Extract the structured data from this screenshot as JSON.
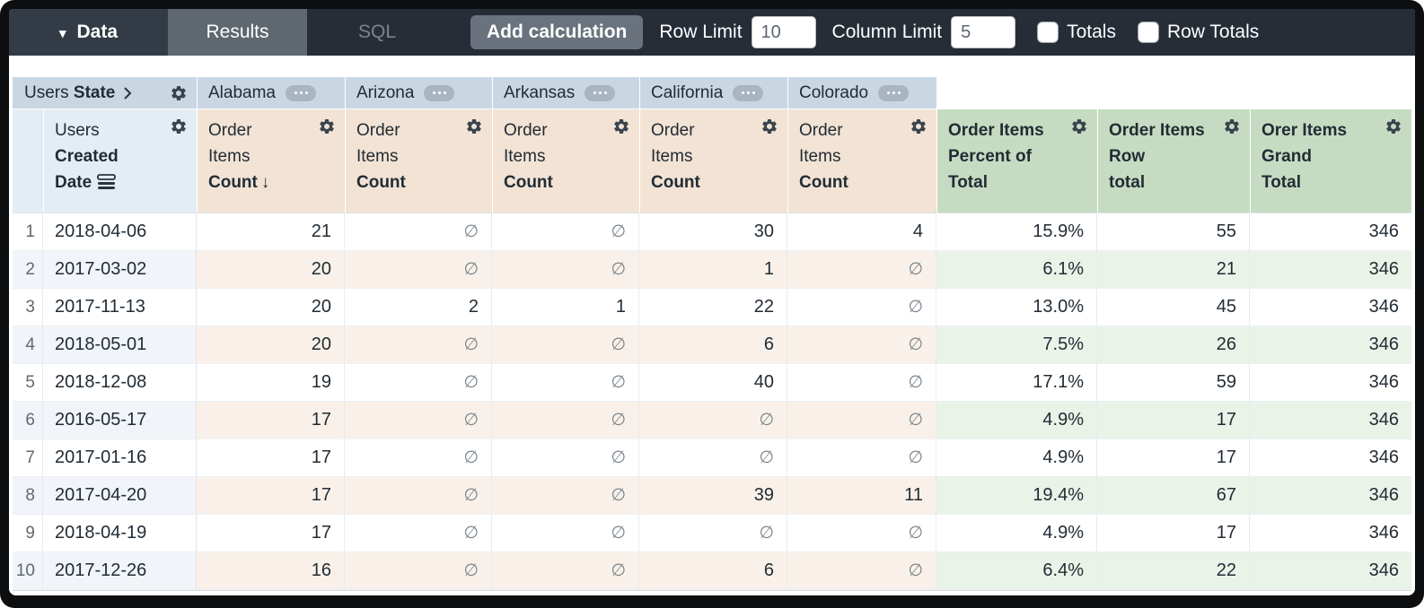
{
  "toolbar": {
    "data_tab": "Data",
    "results_tab": "Results",
    "sql_tab": "SQL",
    "add_calculation": "Add calculation",
    "row_limit_label": "Row Limit",
    "row_limit_value": "10",
    "column_limit_label": "Column Limit",
    "column_limit_value": "5",
    "totals_label": "Totals",
    "row_totals_label": "Row Totals",
    "totals_checked": false,
    "row_totals_checked": false
  },
  "icons": {
    "caret_down": "▾",
    "sort_descending": "↓",
    "null_value": "∅",
    "gear": "settings-gear",
    "ellipsis_pill": "three-dots-menu",
    "chevron_right": "expand-chevron",
    "date_hierarchy": "layered-bars"
  },
  "colors": {
    "pivot_header_bg": "#c9d7e3",
    "dim_header_bg": "#e4ecf4",
    "measure_header_bg": "#f2e3d5",
    "calc_header_bg": "#c6dcc2",
    "row_even_dim": "#f1f5f9",
    "row_even_measure": "#f9f1e9",
    "row_even_calc": "#eaf3e8",
    "topbar_bg": "#262d37"
  },
  "table": {
    "pivot_dim": {
      "regular": "Users",
      "bold": "State"
    },
    "pivot_values": [
      "Alabama",
      "Arizona",
      "Arkansas",
      "California",
      "Colorado"
    ],
    "row_field": {
      "line1": "Users",
      "line2": "Created",
      "line3": "Date"
    },
    "measure_field": {
      "line1": "Order",
      "line2": "Items",
      "line3": "Count"
    },
    "sorted_pivot_index": 0,
    "calc_fields": [
      [
        "Order Items",
        "Percent of",
        "Total"
      ],
      [
        "Order Items",
        "Row",
        "total"
      ],
      [
        "Orer Items",
        "Grand",
        "Total"
      ]
    ],
    "null_symbol": "∅",
    "rows": [
      {
        "n": "1",
        "date": "2018-04-06",
        "values": [
          "21",
          "∅",
          "∅",
          "30",
          "4"
        ],
        "pct": "15.9%",
        "row_total": "55",
        "grand_total": "346"
      },
      {
        "n": "2",
        "date": "2017-03-02",
        "values": [
          "20",
          "∅",
          "∅",
          "1",
          "∅"
        ],
        "pct": "6.1%",
        "row_total": "21",
        "grand_total": "346"
      },
      {
        "n": "3",
        "date": "2017-11-13",
        "values": [
          "20",
          "2",
          "1",
          "22",
          "∅"
        ],
        "pct": "13.0%",
        "row_total": "45",
        "grand_total": "346"
      },
      {
        "n": "4",
        "date": "2018-05-01",
        "values": [
          "20",
          "∅",
          "∅",
          "6",
          "∅"
        ],
        "pct": "7.5%",
        "row_total": "26",
        "grand_total": "346"
      },
      {
        "n": "5",
        "date": "2018-12-08",
        "values": [
          "19",
          "∅",
          "∅",
          "40",
          "∅"
        ],
        "pct": "17.1%",
        "row_total": "59",
        "grand_total": "346"
      },
      {
        "n": "6",
        "date": "2016-05-17",
        "values": [
          "17",
          "∅",
          "∅",
          "∅",
          "∅"
        ],
        "pct": "4.9%",
        "row_total": "17",
        "grand_total": "346"
      },
      {
        "n": "7",
        "date": "2017-01-16",
        "values": [
          "17",
          "∅",
          "∅",
          "∅",
          "∅"
        ],
        "pct": "4.9%",
        "row_total": "17",
        "grand_total": "346"
      },
      {
        "n": "8",
        "date": "2017-04-20",
        "values": [
          "17",
          "∅",
          "∅",
          "39",
          "11"
        ],
        "pct": "19.4%",
        "row_total": "67",
        "grand_total": "346"
      },
      {
        "n": "9",
        "date": "2018-04-19",
        "values": [
          "17",
          "∅",
          "∅",
          "∅",
          "∅"
        ],
        "pct": "4.9%",
        "row_total": "17",
        "grand_total": "346"
      },
      {
        "n": "10",
        "date": "2017-12-26",
        "values": [
          "16",
          "∅",
          "∅",
          "6",
          "∅"
        ],
        "pct": "6.4%",
        "row_total": "22",
        "grand_total": "346"
      }
    ]
  }
}
